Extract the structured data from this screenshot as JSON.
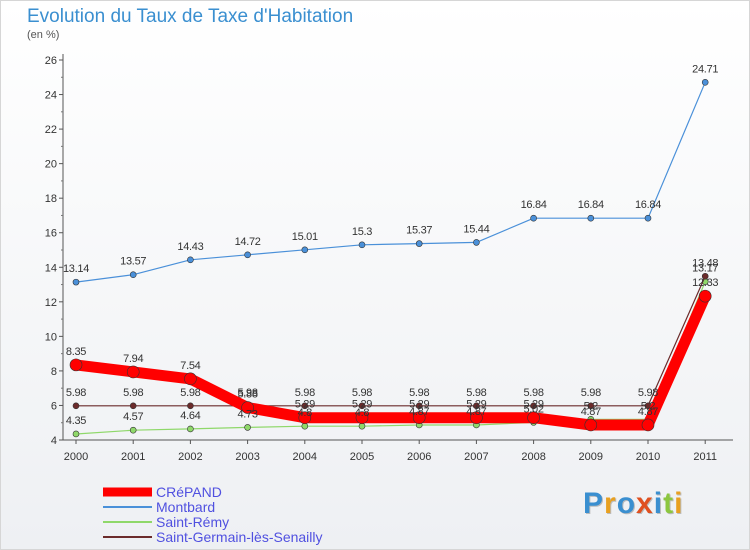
{
  "chart_data": {
    "type": "line",
    "title": "Evolution du Taux de Taxe d'Habitation",
    "subtitle": "(en %)",
    "x": [
      "2000",
      "2001",
      "2002",
      "2003",
      "2004",
      "2005",
      "2006",
      "2007",
      "2008",
      "2009",
      "2010",
      "2011"
    ],
    "ylim": [
      4,
      26
    ],
    "yticks": [
      4,
      6,
      8,
      10,
      12,
      14,
      16,
      18,
      20,
      22,
      24,
      26
    ],
    "grid": false,
    "legend": "bottom-left",
    "series": [
      {
        "name": "Montbard",
        "color": "#4a90d9",
        "values": [
          13.14,
          13.57,
          14.43,
          14.72,
          15.01,
          15.3,
          15.37,
          15.44,
          16.84,
          16.84,
          16.84,
          24.71
        ],
        "labels": [
          "13.14",
          "13.57",
          "14.43",
          "14.72",
          "15.01",
          "15.3",
          "15.37",
          "15.44",
          "16.84",
          "16.84",
          "16.84",
          "24.71"
        ]
      },
      {
        "name": "Saint-Rémy",
        "color": "#8fd86a",
        "values": [
          4.35,
          4.57,
          4.64,
          4.73,
          4.8,
          4.8,
          4.87,
          4.87,
          5.02,
          5.2,
          5.2,
          13.17
        ],
        "labels": [
          "4.35",
          "4.57",
          "4.64",
          "4.73",
          "4.8",
          "4.8",
          "4.87",
          "4.87",
          "5.02",
          "5.2",
          "5.2",
          "13.17"
        ]
      },
      {
        "name": "Saint-Germain-lès-Senailly",
        "color": "#6b2b2b",
        "values": [
          5.98,
          5.98,
          5.98,
          5.98,
          5.98,
          5.98,
          5.98,
          5.98,
          5.98,
          5.98,
          5.98,
          13.48
        ],
        "labels": [
          "5.98",
          "5.98",
          "5.98",
          "5.98",
          "5.98",
          "5.98",
          "5.98",
          "5.98",
          "5.98",
          "5.98",
          "5.98",
          "13.48"
        ]
      },
      {
        "name": "CRéPAND",
        "color": "#ff0000",
        "values": [
          8.35,
          7.94,
          7.54,
          5.88,
          5.29,
          5.29,
          5.29,
          5.29,
          5.29,
          4.87,
          4.87,
          12.33
        ],
        "labels": [
          "8.35",
          "7.94",
          "7.54",
          "5.88",
          "5.29",
          "5.29",
          "5.29",
          "5.29",
          "5.29",
          "4.87",
          "4.87",
          "12.33"
        ]
      }
    ],
    "legend_entries": [
      {
        "name": "CRéPAND",
        "color": "#ff0000",
        "bold": true
      },
      {
        "name": "Montbard",
        "color": "#4a90d9",
        "bold": false
      },
      {
        "name": "Saint-Rémy",
        "color": "#8fd86a",
        "bold": false
      },
      {
        "name": "Saint-Germain-lès-Senailly",
        "color": "#6b2b2b",
        "bold": false
      }
    ]
  },
  "logo": {
    "text": "Proxiti",
    "letters": [
      {
        "ch": "P",
        "color": "#3a8fd0"
      },
      {
        "ch": "r",
        "color": "#e8a020"
      },
      {
        "ch": "o",
        "color": "#3a8fd0"
      },
      {
        "ch": "x",
        "color": "#e05020"
      },
      {
        "ch": "i",
        "color": "#3a8fd0"
      },
      {
        "ch": "t",
        "color": "#8cc63f"
      },
      {
        "ch": "i",
        "color": "#e8a020"
      }
    ]
  }
}
